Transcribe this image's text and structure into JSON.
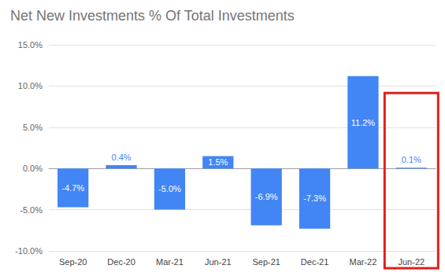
{
  "chart_data": {
    "type": "bar",
    "title": "Net New Investments % Of Total Investments",
    "categories": [
      "Sep-20",
      "Dec-20",
      "Mar-21",
      "Jun-21",
      "Sep-21",
      "Dec-21",
      "Mar-22",
      "Jun-22"
    ],
    "values": [
      -4.7,
      0.4,
      -5.0,
      1.5,
      -6.9,
      -7.3,
      11.2,
      0.1
    ],
    "value_labels": [
      "-4.7%",
      "0.4%",
      "-5.0%",
      "1.5%",
      "-6.9%",
      "-7.3%",
      "11.2%",
      "0.1%"
    ],
    "color": "#4285f4",
    "ylim": [
      -10,
      15
    ],
    "yticks": [
      {
        "value": -10,
        "label": "-10.0%"
      },
      {
        "value": -5,
        "label": "-5.0%"
      },
      {
        "value": 0,
        "label": "0.0%"
      },
      {
        "value": 5,
        "label": "5.0%"
      },
      {
        "value": 10,
        "label": "10.0%"
      },
      {
        "value": 15,
        "label": "15.0%"
      }
    ],
    "grid": true,
    "data_labels": true
  }
}
